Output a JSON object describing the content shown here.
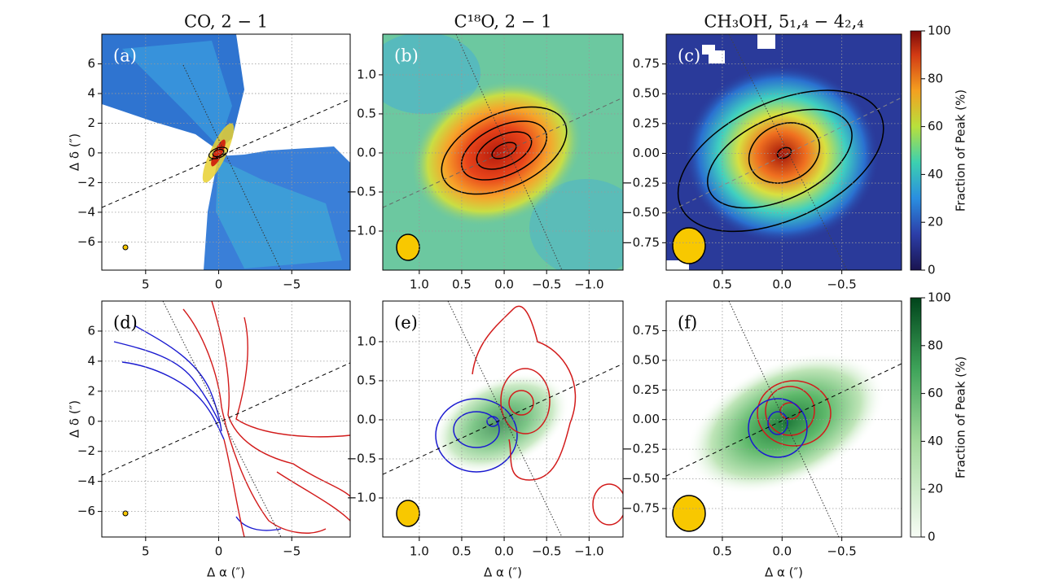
{
  "chart_data": [
    {
      "type": "image",
      "title": "CO, 2 − 1",
      "panel_label": "(a)",
      "ylabel": "Δ δ (″)",
      "xlim": [
        8,
        -9
      ],
      "ylim": [
        -7.9,
        8
      ],
      "grid": true,
      "xticks": [
        5,
        0,
        {
          "value": -5,
          "label": "−5"
        }
      ],
      "yticks": [
        6,
        4,
        2,
        0,
        {
          "value": -2,
          "label": "−2"
        },
        {
          "value": -4,
          "label": "−4"
        },
        {
          "value": -6,
          "label": "−6"
        }
      ]
    },
    {
      "type": "image",
      "title": "C¹⁸O, 2 − 1",
      "panel_label": "(b)",
      "xlim": [
        1.43,
        -1.4
      ],
      "ylim": [
        -1.5,
        1.52
      ],
      "grid": true,
      "xticks": [
        {
          "value": 1,
          "label": "1.0"
        },
        0.5,
        {
          "value": 0,
          "label": "0.0"
        },
        {
          "value": -0.5,
          "label": "−0.5"
        },
        {
          "value": -1,
          "label": "−1.0"
        }
      ],
      "yticks": [
        {
          "value": 1,
          "label": "1.0"
        },
        0.5,
        {
          "value": 0,
          "label": "0.0"
        },
        {
          "value": -0.5,
          "label": "−0.5"
        },
        {
          "value": -1,
          "label": "−1.0"
        }
      ]
    },
    {
      "type": "image",
      "title": "CH₃OH, 5₁,₄ − 4₂,₄",
      "panel_label": "(c)",
      "xlim": [
        0.97,
        -1.0
      ],
      "ylim": [
        -0.98,
        1.0
      ],
      "grid": true,
      "xticks": [
        0.5,
        {
          "value": 0,
          "label": "0.0"
        },
        {
          "value": -0.5,
          "label": "−0.5"
        }
      ],
      "yticks": [
        0.75,
        {
          "value": 0.5,
          "label": "0.50"
        },
        0.25,
        {
          "value": 0,
          "label": "0.00"
        },
        {
          "value": -0.25,
          "label": "−0.25"
        },
        {
          "value": -0.5,
          "label": "−0.50"
        },
        {
          "value": -0.75,
          "label": "−0.75"
        }
      ],
      "colorbar": {
        "label": "Fraction of Peak (%)",
        "lim": [
          0,
          100
        ],
        "ticks": [
          0,
          20,
          40,
          60,
          80,
          100
        ]
      }
    },
    {
      "type": "image",
      "panel_label": "(d)",
      "ylabel": "Δ δ (″)",
      "xlabel": "Δ α (″)",
      "xlim": [
        8,
        -9
      ],
      "ylim": [
        -7.7,
        8
      ],
      "grid": true,
      "xticks": [
        5,
        0,
        {
          "value": -5,
          "label": "−5"
        }
      ],
      "yticks": [
        6,
        4,
        2,
        0,
        {
          "value": -2,
          "label": "−2"
        },
        {
          "value": -4,
          "label": "−4"
        },
        {
          "value": -6,
          "label": "−6"
        }
      ]
    },
    {
      "type": "image",
      "panel_label": "(e)",
      "xlabel": "Δ α (″)",
      "xlim": [
        1.43,
        -1.4
      ],
      "ylim": [
        -1.5,
        1.52
      ],
      "grid": true,
      "xticks": [
        {
          "value": 1,
          "label": "1.0"
        },
        0.5,
        {
          "value": 0,
          "label": "0.0"
        },
        {
          "value": -0.5,
          "label": "−0.5"
        },
        {
          "value": -1,
          "label": "−1.0"
        }
      ],
      "yticks": [
        {
          "value": 1,
          "label": "1.0"
        },
        0.5,
        {
          "value": 0,
          "label": "0.0"
        },
        {
          "value": -0.5,
          "label": "−0.5"
        },
        {
          "value": -1,
          "label": "−1.0"
        }
      ]
    },
    {
      "type": "image",
      "panel_label": "(f)",
      "xlabel": "Δ α (″)",
      "xlim": [
        0.97,
        -1.0
      ],
      "ylim": [
        -0.99,
        1.0
      ],
      "grid": true,
      "xticks": [
        0.5,
        {
          "value": 0,
          "label": "0.0"
        },
        {
          "value": -0.5,
          "label": "−0.5"
        }
      ],
      "yticks": [
        0.75,
        {
          "value": 0.5,
          "label": "0.50"
        },
        0.25,
        {
          "value": 0,
          "label": "0.00"
        },
        {
          "value": -0.25,
          "label": "−0.25"
        },
        {
          "value": -0.5,
          "label": "−0.50"
        },
        {
          "value": -0.75,
          "label": "−0.75"
        }
      ],
      "colorbar": {
        "label": "Fraction of Peak (%)",
        "lim": [
          0,
          100
        ],
        "ticks": [
          0,
          20,
          40,
          60,
          80,
          100
        ]
      }
    }
  ]
}
